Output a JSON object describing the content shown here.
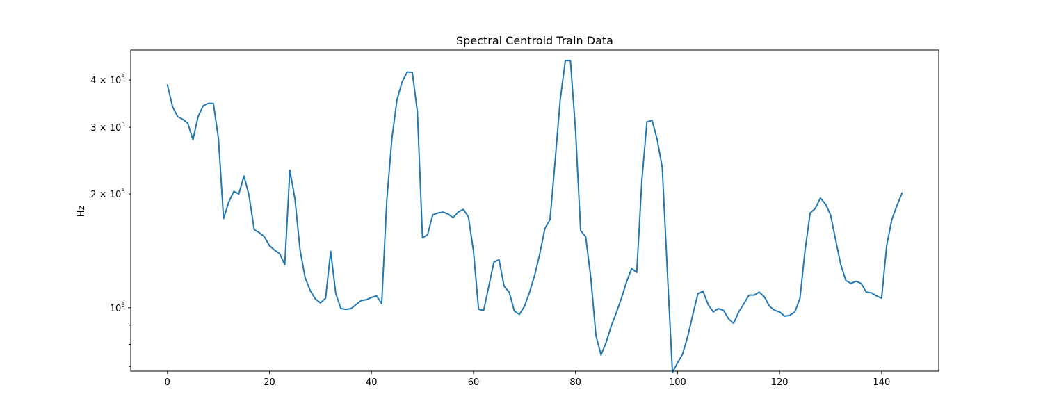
{
  "chart_data": {
    "type": "line",
    "title": "Spectral Centroid Train Data",
    "xlabel": "",
    "ylabel": "Hz",
    "y_scale": "log",
    "xlim": [
      -7.2,
      151.2
    ],
    "ylim": [
      680,
      4800
    ],
    "grid": false,
    "x_ticks": [
      0,
      20,
      40,
      60,
      80,
      100,
      120,
      140
    ],
    "y_major_ticks": [
      {
        "value": 1000,
        "label": "10^3"
      }
    ],
    "y_minor_labeled_ticks": [
      {
        "value": 2000,
        "label": "2 × 10^3"
      },
      {
        "value": 3000,
        "label": "3 × 10^3"
      },
      {
        "value": 4000,
        "label": "4 × 10^3"
      }
    ],
    "y_minor_unlabeled_ticks": [
      700,
      800,
      900
    ],
    "series": [
      {
        "color": "#1f77b4",
        "values": [
          3880,
          3400,
          3200,
          3150,
          3070,
          2780,
          3200,
          3420,
          3470,
          3470,
          2800,
          1720,
          1900,
          2030,
          2000,
          2230,
          1980,
          1610,
          1580,
          1540,
          1460,
          1420,
          1390,
          1300,
          2310,
          1940,
          1420,
          1200,
          1110,
          1055,
          1030,
          1060,
          1410,
          1090,
          995,
          990,
          995,
          1020,
          1045,
          1050,
          1065,
          1075,
          1025,
          1920,
          2800,
          3550,
          3950,
          4200,
          4190,
          3300,
          1530,
          1560,
          1760,
          1780,
          1790,
          1770,
          1730,
          1790,
          1820,
          1740,
          1410,
          990,
          985,
          1140,
          1320,
          1340,
          1140,
          1100,
          980,
          960,
          1010,
          1100,
          1220,
          1390,
          1620,
          1710,
          2440,
          3550,
          4500,
          4500,
          2950,
          1600,
          1540,
          1200,
          845,
          750,
          810,
          895,
          970,
          1060,
          1170,
          1270,
          1240,
          2170,
          3100,
          3130,
          2790,
          2350,
          1250,
          675,
          715,
          755,
          840,
          960,
          1090,
          1105,
          1020,
          975,
          995,
          985,
          935,
          910,
          975,
          1025,
          1080,
          1080,
          1100,
          1070,
          1010,
          985,
          975,
          950,
          955,
          975,
          1060,
          1420,
          1780,
          1830,
          1950,
          1880,
          1760,
          1510,
          1300,
          1180,
          1160,
          1175,
          1160,
          1100,
          1095,
          1075,
          1060,
          1460,
          1710,
          1860,
          2010
        ]
      }
    ]
  }
}
